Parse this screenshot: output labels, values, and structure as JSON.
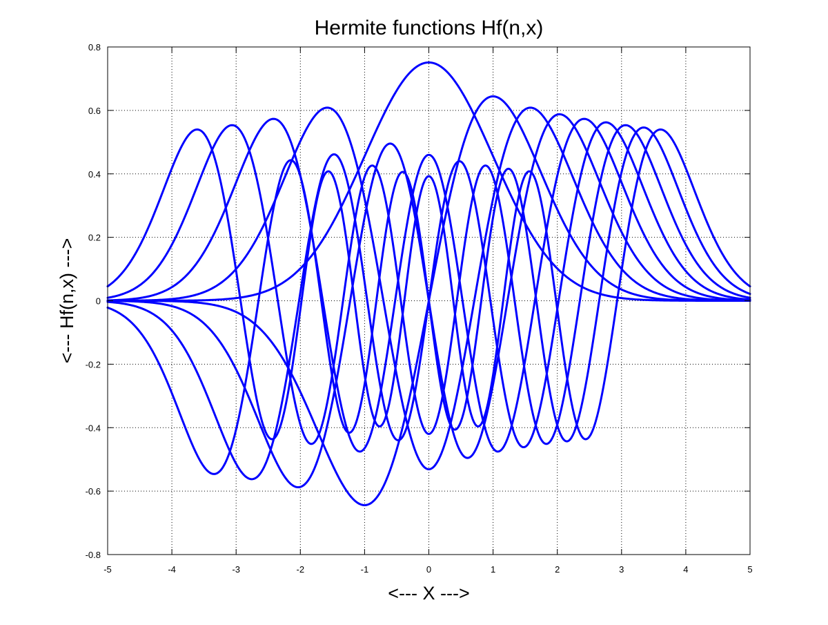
{
  "chart_data": {
    "type": "line",
    "title": "Hermite functions Hf(n,x)",
    "xlabel": "<--- X --->",
    "ylabel": "<--- Hf(n,x) --->",
    "xlim": [
      -5,
      5
    ],
    "ylim": [
      -0.8,
      0.8
    ],
    "xticks": [
      -5,
      -4,
      -3,
      -2,
      -1,
      0,
      1,
      2,
      3,
      4,
      5
    ],
    "yticks": [
      -0.8,
      -0.6,
      -0.4,
      -0.2,
      0,
      0.2,
      0.4,
      0.6,
      0.8
    ],
    "xtick_labels": [
      "-5",
      "-4",
      "-3",
      "-2",
      "-1",
      "0",
      "1",
      "2",
      "3",
      "4",
      "5"
    ],
    "ytick_labels": [
      "-0.8",
      "-0.6",
      "-0.4",
      "-0.2",
      "0",
      "0.2",
      "0.4",
      "0.6",
      "0.8"
    ],
    "grid": true,
    "grid_style": "dotted",
    "legend": false,
    "line_color": "#0000ff",
    "function_orders": [
      0,
      1,
      2,
      3,
      4,
      5,
      6,
      7,
      8
    ],
    "x_sampling": {
      "start": -5,
      "end": 5,
      "step": 0.02
    },
    "series": [
      {
        "x": [
          -5,
          -4.5,
          -4,
          -3.5,
          -3,
          -2.5,
          -2,
          -1.5,
          -1,
          -0.5,
          0,
          0.5,
          1,
          1.5,
          2,
          2.5,
          3,
          3.5,
          4,
          4.5,
          5
        ],
        "values": [
          0,
          0,
          0,
          0.002,
          0.008,
          0.033,
          0.102,
          0.243,
          0.456,
          0.664,
          0.751,
          0.664,
          0.456,
          0.243,
          0.102,
          0.033,
          0.008,
          0.002,
          0,
          0,
          0
        ]
      },
      {
        "x": [
          -5,
          -4.5,
          -4,
          -3.5,
          -3,
          -2.5,
          -2,
          -1.5,
          -1,
          -0.5,
          0,
          0.5,
          1,
          1.5,
          2,
          2.5,
          3,
          3.5,
          4,
          4.5,
          5
        ],
        "values": [
          0,
          -0.001,
          -0.002,
          -0.011,
          -0.035,
          -0.116,
          -0.288,
          -0.515,
          -0.645,
          -0.469,
          0,
          0.469,
          0.645,
          0.515,
          0.288,
          0.116,
          0.035,
          0.011,
          0.002,
          0.001,
          0
        ]
      },
      {
        "x": [
          -5,
          -4.5,
          -4,
          -3.5,
          -3,
          -2.5,
          -2,
          -1.5,
          -1,
          -0.5,
          0,
          0.5,
          1,
          1.5,
          2,
          2.5,
          3,
          3.5,
          4,
          4.5,
          5
        ],
        "values": [
          0,
          0.003,
          0.016,
          0.057,
          0.186,
          0.387,
          0.504,
          0.299,
          -0.023,
          -0.301,
          -0.531,
          -0.301,
          -0.023,
          0.299,
          0.504,
          0.387,
          0.186,
          0.057,
          0.016,
          0.003,
          0
        ]
      },
      {
        "x": [
          -5,
          -4.5,
          -4,
          -3.5,
          -3,
          -2.5,
          -2,
          -1.5,
          -1,
          -0.5,
          0,
          0.5,
          1,
          1.5,
          2,
          2.5,
          3,
          3.5,
          4,
          4.5,
          5
        ],
        "values": [
          0,
          -0.01,
          -0.049,
          -0.166,
          -0.388,
          -0.56,
          -0.385,
          0.127,
          0.353,
          0.373,
          0,
          -0.373,
          -0.353,
          -0.127,
          0.385,
          0.56,
          0.388,
          0.166,
          0.049,
          0.01,
          0
        ]
      },
      {
        "x": [
          -5,
          -4.5,
          -4,
          -3.5,
          -3,
          -2.5,
          -2,
          -1.5,
          -1,
          -0.5,
          0,
          0.5,
          1,
          1.5,
          2,
          2.5,
          3,
          3.5,
          4,
          4.5,
          5
        ],
        "values": [
          0.001,
          0.025,
          0.107,
          0.312,
          0.546,
          0.517,
          0.079,
          -0.368,
          -0.391,
          0.145,
          0.46,
          0.145,
          -0.391,
          -0.368,
          0.079,
          0.517,
          0.546,
          0.312,
          0.107,
          0.025,
          0.001
        ]
      },
      {
        "x": [
          -5,
          -4.5,
          -4,
          -3.5,
          -3,
          -2.5,
          -2,
          -1.5,
          -1,
          -0.5,
          0,
          0.5,
          1,
          1.5,
          2,
          2.5,
          3,
          3.5,
          4,
          4.5,
          5
        ],
        "values": [
          -0.003,
          -0.058,
          -0.227,
          -0.497,
          -0.586,
          -0.187,
          0.382,
          0.361,
          -0.212,
          -0.431,
          0,
          0.431,
          0.212,
          -0.361,
          -0.382,
          0.187,
          0.586,
          0.497,
          0.227,
          0.058,
          0.003
        ]
      },
      {
        "x": [
          -5,
          -4.5,
          -4,
          -3.5,
          -3,
          -2.5,
          -2,
          -1.5,
          -1,
          -0.5,
          0,
          0.5,
          1,
          1.5,
          2,
          2.5,
          3,
          3.5,
          4,
          4.5,
          5
        ],
        "values": [
          0.009,
          0.113,
          0.382,
          0.608,
          0.361,
          -0.312,
          -0.457,
          0.241,
          0.418,
          -0.205,
          -0.424,
          -0.205,
          0.418,
          0.241,
          -0.457,
          -0.312,
          0.361,
          0.608,
          0.382,
          0.113,
          0.009
        ]
      },
      {
        "x": [
          -5,
          -4.5,
          -4,
          -3.5,
          -3,
          -2.5,
          -2,
          -1.5,
          -1,
          -0.5,
          0,
          0.5,
          1,
          1.5,
          2,
          2.5,
          3,
          3.5,
          4,
          4.5,
          5
        ],
        "values": [
          -0.029,
          -0.215,
          -0.537,
          -0.505,
          0.135,
          0.498,
          -0.094,
          -0.454,
          0.203,
          0.441,
          0,
          -0.441,
          -0.203,
          0.454,
          0.094,
          -0.498,
          -0.135,
          0.505,
          0.537,
          0.215,
          0.029
        ]
      },
      {
        "x": [
          -5,
          -4.5,
          -4,
          -3.5,
          -3,
          -2.5,
          -2,
          -1.5,
          -1,
          -0.5,
          0,
          0.5,
          1,
          1.5,
          2,
          2.5,
          3,
          3.5,
          4,
          4.5,
          5
        ],
        "values": [
          0.074,
          0.372,
          0.575,
          0.086,
          -0.517,
          0.097,
          0.446,
          -0.273,
          -0.328,
          0.223,
          0.411,
          0.223,
          -0.328,
          -0.273,
          0.446,
          0.097,
          -0.517,
          0.086,
          0.575,
          0.372,
          0.074
        ]
      }
    ]
  }
}
